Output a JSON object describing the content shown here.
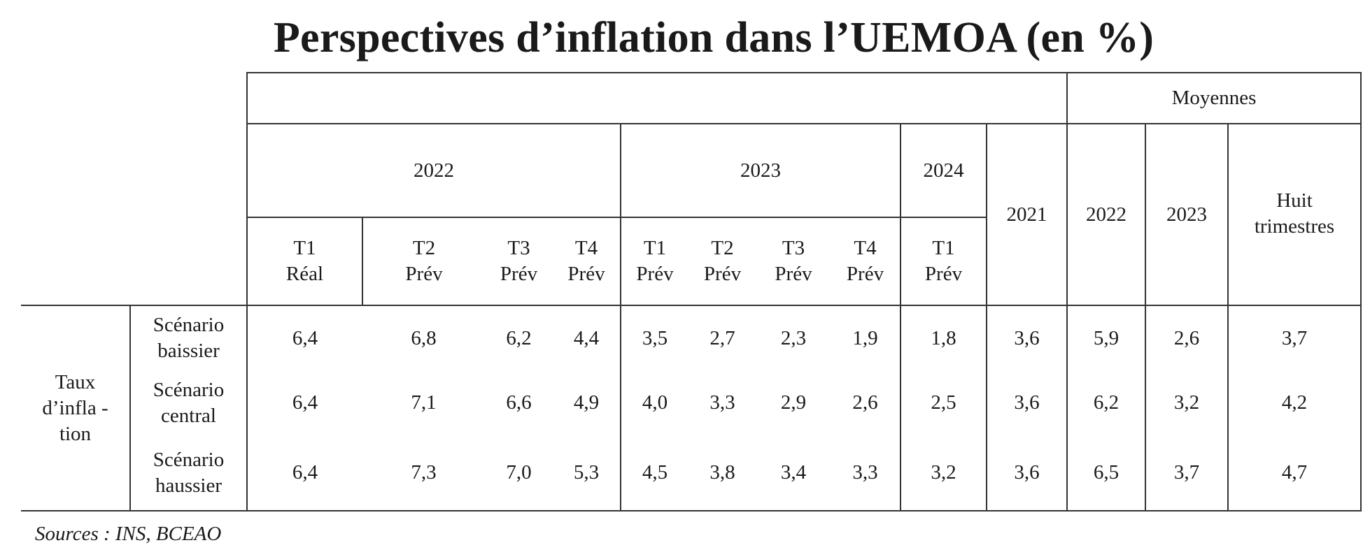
{
  "title": "Perspectives d’inflation dans l’UEMOA (en %)",
  "header": {
    "averages_label": "Moyennes",
    "year_2022": "2022",
    "year_2023": "2023",
    "year_2024": "2024",
    "col_2021": "2021",
    "avg_2022": "2022",
    "avg_2023": "2023",
    "avg_eight_line1": "Huit",
    "avg_eight_line2": "trimestres",
    "quarters": [
      {
        "q": "T1",
        "type": "Réal"
      },
      {
        "q": "T2",
        "type": "Prév"
      },
      {
        "q": "T3",
        "type": "Prév"
      },
      {
        "q": "T4",
        "type": "Prév"
      },
      {
        "q": "T1",
        "type": "Prév"
      },
      {
        "q": "T2",
        "type": "Prév"
      },
      {
        "q": "T3",
        "type": "Prév"
      },
      {
        "q": "T4",
        "type": "Prév"
      },
      {
        "q": "T1",
        "type": "Prév"
      }
    ]
  },
  "row_group": {
    "line1": "Taux",
    "line2": "d’infla -",
    "line3": "tion"
  },
  "rows": [
    {
      "line1": "Scénario",
      "line2": "baissier",
      "values": [
        "6,4",
        "6,8",
        "6,2",
        "4,4",
        "3,5",
        "2,7",
        "2,3",
        "1,9",
        "1,8",
        "3,6",
        "5,9",
        "2,6",
        "3,7"
      ]
    },
    {
      "line1": "Scénario",
      "line2": "central",
      "values": [
        "6,4",
        "7,1",
        "6,6",
        "4,9",
        "4,0",
        "3,3",
        "2,9",
        "2,6",
        "2,5",
        "3,6",
        "6,2",
        "3,2",
        "4,2"
      ]
    },
    {
      "line1": "Scénario",
      "line2": "haussier",
      "values": [
        "6,4",
        "7,3",
        "7,0",
        "5,3",
        "4,5",
        "3,8",
        "3,4",
        "3,3",
        "3,2",
        "3,6",
        "6,5",
        "3,7",
        "4,7"
      ]
    }
  ],
  "source": "Sources : INS, BCEAO"
}
